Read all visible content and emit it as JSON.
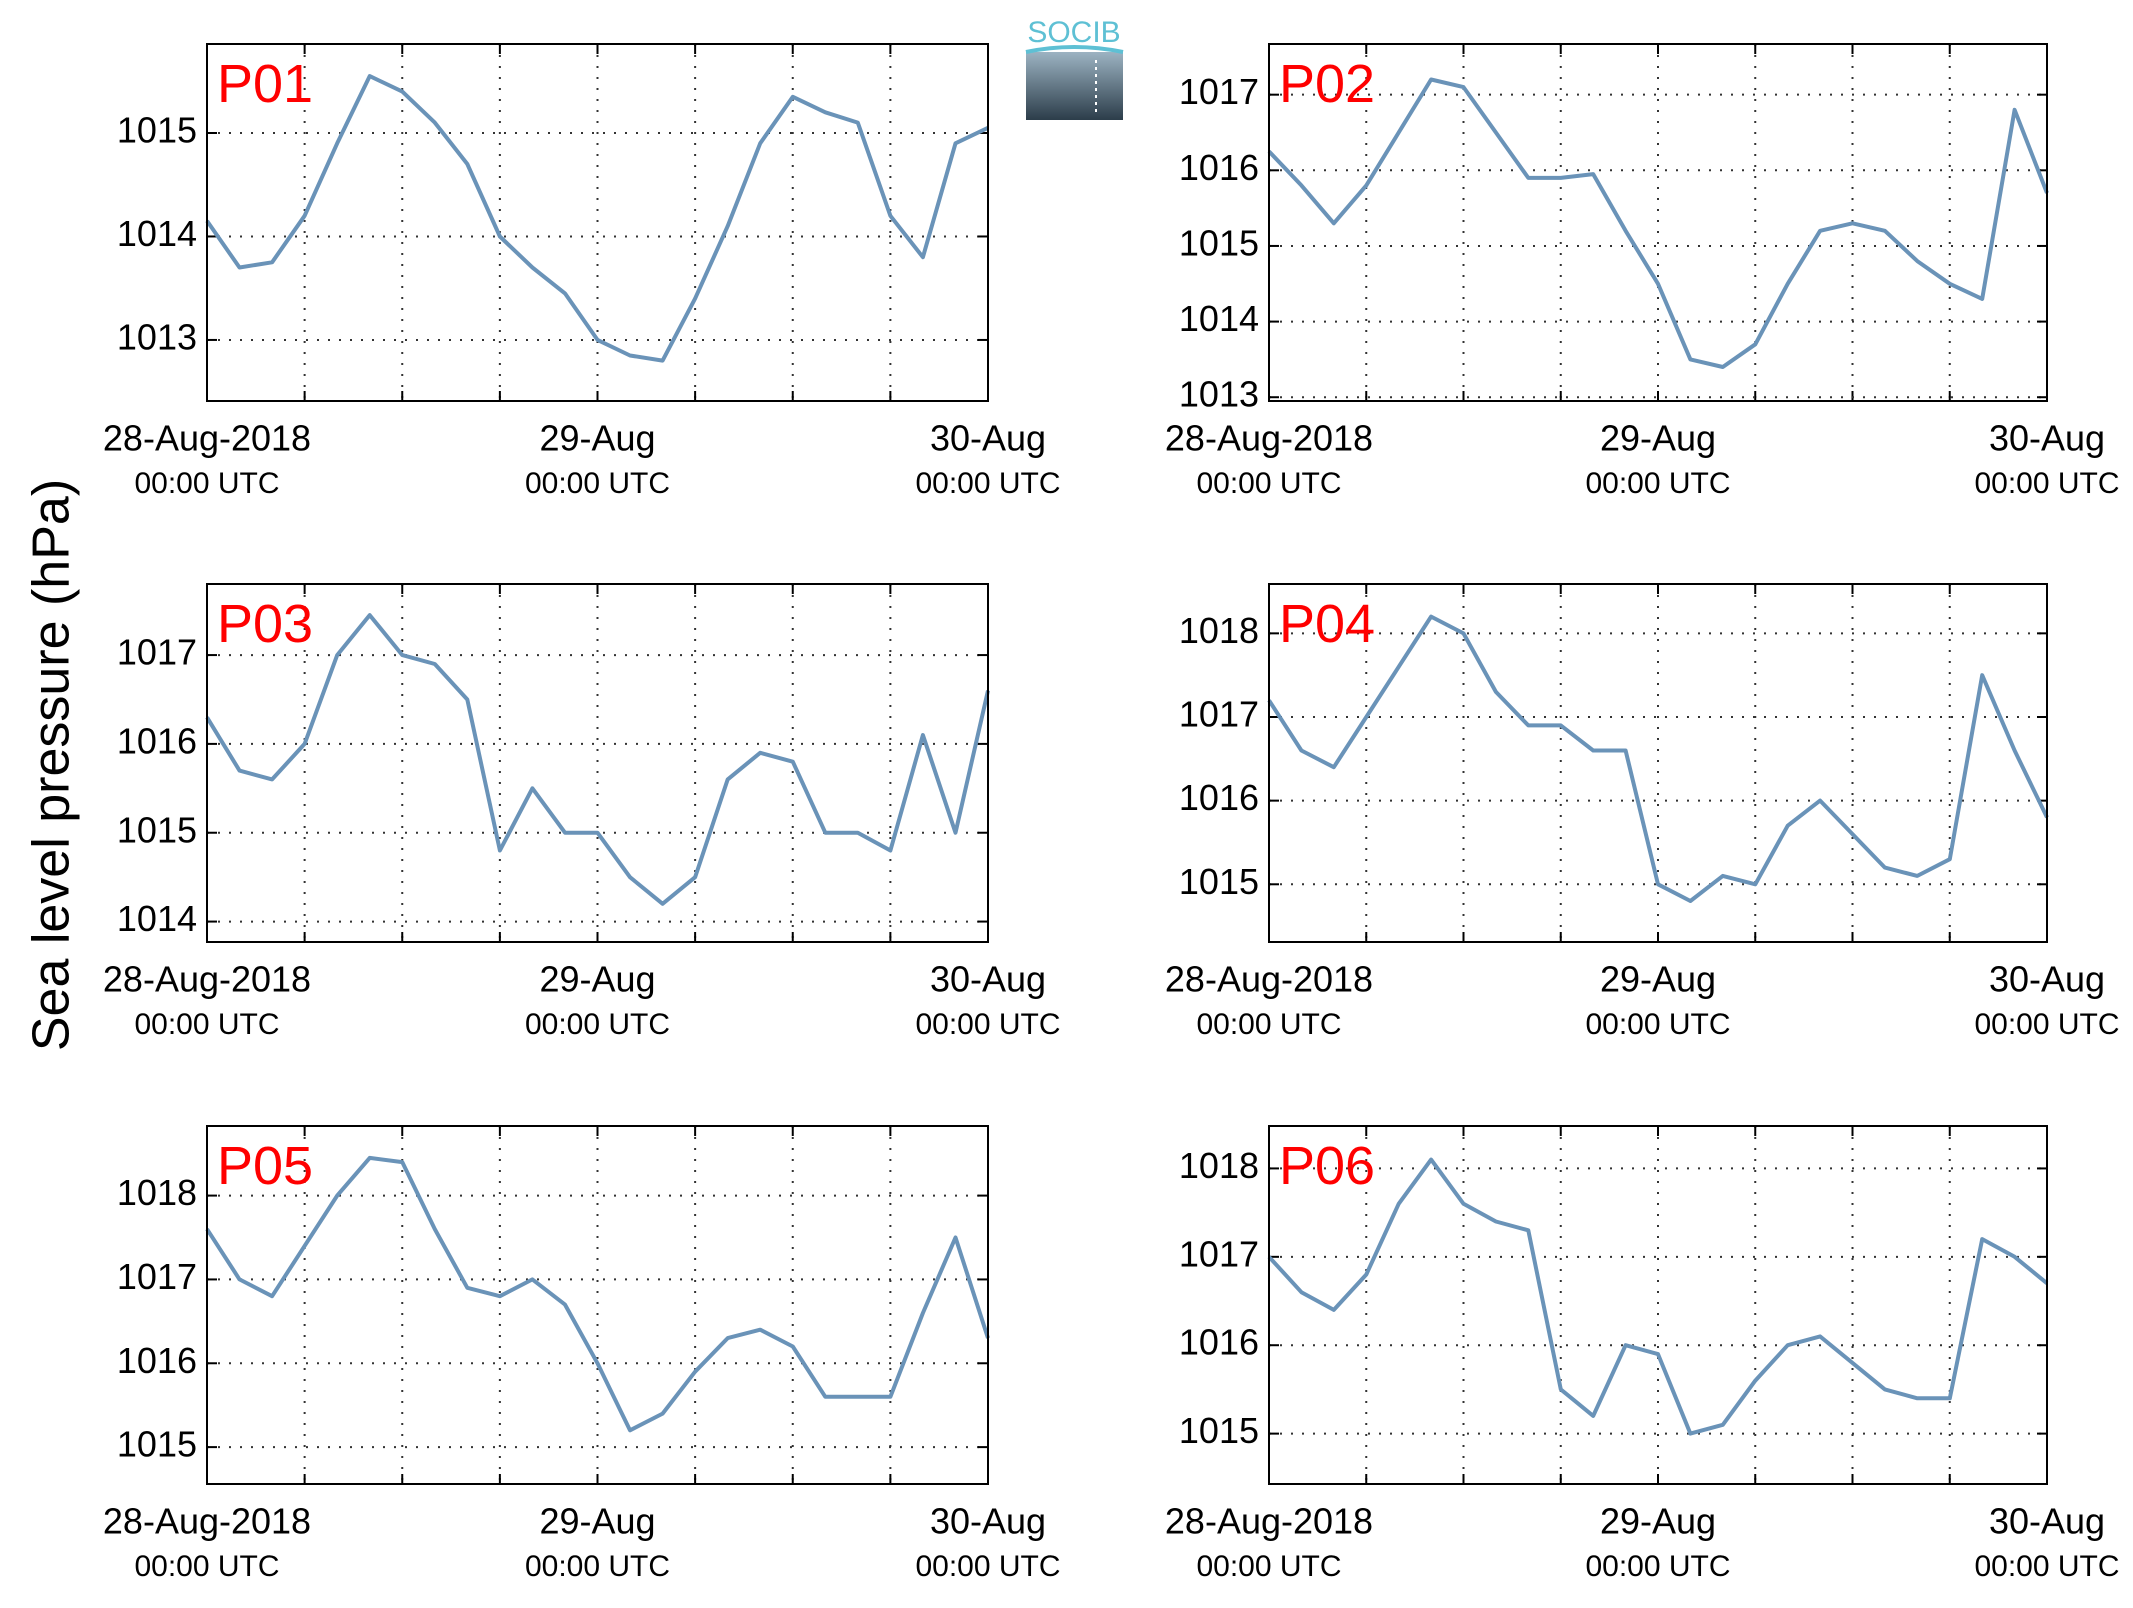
{
  "logo": "SOCIB",
  "y_label": "Sea level pressure (hPa)",
  "chart_data": [
    {
      "type": "line",
      "title": "P01",
      "color": "#6a93b8",
      "grid": true,
      "x": [
        0,
        2,
        4,
        6,
        8,
        10,
        12,
        14,
        16,
        18,
        20,
        22,
        24,
        26,
        28,
        30,
        32,
        34,
        36,
        38,
        40,
        42,
        44,
        46,
        48
      ],
      "values": [
        1014.15,
        1013.7,
        1013.75,
        1014.2,
        1014.9,
        1015.55,
        1015.4,
        1015.1,
        1014.7,
        1014.0,
        1013.7,
        1013.45,
        1013.0,
        1012.85,
        1012.8,
        1013.4,
        1014.1,
        1014.9,
        1015.35,
        1015.2,
        1015.1,
        1014.2,
        1013.8,
        1014.9,
        1015.05
      ],
      "xlim": [
        0,
        48
      ],
      "ylim": [
        1012.41,
        1015.86
      ],
      "yticks": [
        1013,
        1014,
        1015
      ],
      "xticks": [
        {
          "value": 0,
          "label": [
            "28-Aug-2018",
            "00:00 UTC"
          ]
        },
        {
          "value": 6,
          "label": null
        },
        {
          "value": 12,
          "label": null
        },
        {
          "value": 18,
          "label": null
        },
        {
          "value": 24,
          "label": [
            "29-Aug",
            "00:00 UTC"
          ]
        },
        {
          "value": 30,
          "label": null
        },
        {
          "value": 36,
          "label": null
        },
        {
          "value": 42,
          "label": null
        },
        {
          "value": 48,
          "label": [
            "30-Aug",
            "00:00 UTC"
          ]
        }
      ]
    },
    {
      "type": "line",
      "title": "P02",
      "color": "#6a93b8",
      "grid": true,
      "x": [
        0,
        2,
        4,
        6,
        8,
        10,
        12,
        14,
        16,
        18,
        20,
        22,
        24,
        26,
        28,
        30,
        32,
        34,
        36,
        38,
        40,
        42,
        44,
        46,
        48
      ],
      "values": [
        1016.25,
        1015.8,
        1015.3,
        1015.8,
        1016.5,
        1017.2,
        1017.1,
        1016.5,
        1015.9,
        1015.9,
        1015.95,
        1015.2,
        1014.5,
        1013.5,
        1013.4,
        1013.7,
        1014.5,
        1015.2,
        1015.3,
        1015.2,
        1014.8,
        1014.5,
        1014.3,
        1016.8,
        1015.7
      ],
      "xlim": [
        0,
        48
      ],
      "ylim": [
        1012.95,
        1017.67
      ],
      "yticks": [
        1013,
        1014,
        1015,
        1016,
        1017
      ],
      "xticks": [
        {
          "value": 0,
          "label": [
            "28-Aug-2018",
            "00:00 UTC"
          ]
        },
        {
          "value": 6,
          "label": null
        },
        {
          "value": 12,
          "label": null
        },
        {
          "value": 18,
          "label": null
        },
        {
          "value": 24,
          "label": [
            "29-Aug",
            "00:00 UTC"
          ]
        },
        {
          "value": 30,
          "label": null
        },
        {
          "value": 36,
          "label": null
        },
        {
          "value": 42,
          "label": null
        },
        {
          "value": 48,
          "label": [
            "30-Aug",
            "00:00 UTC"
          ]
        }
      ]
    },
    {
      "type": "line",
      "title": "P03",
      "color": "#6a93b8",
      "grid": true,
      "x": [
        0,
        2,
        4,
        6,
        8,
        10,
        12,
        14,
        16,
        18,
        20,
        22,
        24,
        26,
        28,
        30,
        32,
        34,
        36,
        38,
        40,
        42,
        44,
        46,
        48
      ],
      "values": [
        1016.3,
        1015.7,
        1015.6,
        1016.0,
        1017.0,
        1017.45,
        1017.0,
        1016.9,
        1016.5,
        1014.8,
        1015.5,
        1015.0,
        1015.0,
        1014.5,
        1014.2,
        1014.5,
        1015.6,
        1015.9,
        1015.8,
        1015.0,
        1015.0,
        1014.8,
        1016.1,
        1015.0,
        1016.6
      ],
      "xlim": [
        0,
        48
      ],
      "ylim": [
        1013.77,
        1017.8
      ],
      "yticks": [
        1014,
        1015,
        1016,
        1017
      ],
      "xticks": [
        {
          "value": 0,
          "label": [
            "28-Aug-2018",
            "00:00 UTC"
          ]
        },
        {
          "value": 6,
          "label": null
        },
        {
          "value": 12,
          "label": null
        },
        {
          "value": 18,
          "label": null
        },
        {
          "value": 24,
          "label": [
            "29-Aug",
            "00:00 UTC"
          ]
        },
        {
          "value": 30,
          "label": null
        },
        {
          "value": 36,
          "label": null
        },
        {
          "value": 42,
          "label": null
        },
        {
          "value": 48,
          "label": [
            "30-Aug",
            "00:00 UTC"
          ]
        }
      ]
    },
    {
      "type": "line",
      "title": "P04",
      "color": "#6a93b8",
      "grid": true,
      "x": [
        0,
        2,
        4,
        6,
        8,
        10,
        12,
        14,
        16,
        18,
        20,
        22,
        24,
        26,
        28,
        30,
        32,
        34,
        36,
        38,
        40,
        42,
        44,
        46,
        48
      ],
      "values": [
        1017.2,
        1016.6,
        1016.4,
        1017.0,
        1017.6,
        1018.2,
        1018.0,
        1017.3,
        1016.9,
        1016.9,
        1016.6,
        1016.6,
        1015.0,
        1014.8,
        1015.1,
        1015.0,
        1015.7,
        1016.0,
        1015.6,
        1015.2,
        1015.1,
        1015.3,
        1017.5,
        1016.6,
        1015.8
      ],
      "xlim": [
        0,
        48
      ],
      "ylim": [
        1014.31,
        1018.59
      ],
      "yticks": [
        1015,
        1016,
        1017,
        1018
      ],
      "xticks": [
        {
          "value": 0,
          "label": [
            "28-Aug-2018",
            "00:00 UTC"
          ]
        },
        {
          "value": 6,
          "label": null
        },
        {
          "value": 12,
          "label": null
        },
        {
          "value": 18,
          "label": null
        },
        {
          "value": 24,
          "label": [
            "29-Aug",
            "00:00 UTC"
          ]
        },
        {
          "value": 30,
          "label": null
        },
        {
          "value": 36,
          "label": null
        },
        {
          "value": 42,
          "label": null
        },
        {
          "value": 48,
          "label": [
            "30-Aug",
            "00:00 UTC"
          ]
        }
      ]
    },
    {
      "type": "line",
      "title": "P05",
      "color": "#6a93b8",
      "grid": true,
      "x": [
        0,
        2,
        4,
        6,
        8,
        10,
        12,
        14,
        16,
        18,
        20,
        22,
        24,
        26,
        28,
        30,
        32,
        34,
        36,
        38,
        40,
        42,
        44,
        46,
        48
      ],
      "values": [
        1017.6,
        1017.0,
        1016.8,
        1017.4,
        1018.0,
        1018.45,
        1018.4,
        1017.6,
        1016.9,
        1016.8,
        1017.0,
        1016.7,
        1016.0,
        1015.2,
        1015.4,
        1015.9,
        1016.3,
        1016.4,
        1016.2,
        1015.6,
        1015.6,
        1015.6,
        1016.6,
        1017.5,
        1016.3
      ],
      "xlim": [
        0,
        48
      ],
      "ylim": [
        1014.56,
        1018.83
      ],
      "yticks": [
        1015,
        1016,
        1017,
        1018
      ],
      "xticks": [
        {
          "value": 0,
          "label": [
            "28-Aug-2018",
            "00:00 UTC"
          ]
        },
        {
          "value": 6,
          "label": null
        },
        {
          "value": 12,
          "label": null
        },
        {
          "value": 18,
          "label": null
        },
        {
          "value": 24,
          "label": [
            "29-Aug",
            "00:00 UTC"
          ]
        },
        {
          "value": 30,
          "label": null
        },
        {
          "value": 36,
          "label": null
        },
        {
          "value": 42,
          "label": null
        },
        {
          "value": 48,
          "label": [
            "30-Aug",
            "00:00 UTC"
          ]
        }
      ]
    },
    {
      "type": "line",
      "title": "P06",
      "color": "#6a93b8",
      "grid": true,
      "x": [
        0,
        2,
        4,
        6,
        8,
        10,
        12,
        14,
        16,
        18,
        20,
        22,
        24,
        26,
        28,
        30,
        32,
        34,
        36,
        38,
        40,
        42,
        44,
        46,
        48
      ],
      "values": [
        1017.0,
        1016.6,
        1016.4,
        1016.8,
        1017.6,
        1018.1,
        1017.6,
        1017.4,
        1017.3,
        1015.5,
        1015.2,
        1016.0,
        1015.9,
        1015.0,
        1015.1,
        1015.6,
        1016.0,
        1016.1,
        1015.8,
        1015.5,
        1015.4,
        1015.4,
        1017.2,
        1017.0,
        1016.7
      ],
      "xlim": [
        0,
        48
      ],
      "ylim": [
        1014.43,
        1018.48
      ],
      "yticks": [
        1015,
        1016,
        1017,
        1018
      ],
      "xticks": [
        {
          "value": 0,
          "label": [
            "28-Aug-2018",
            "00:00 UTC"
          ]
        },
        {
          "value": 6,
          "label": null
        },
        {
          "value": 12,
          "label": null
        },
        {
          "value": 18,
          "label": null
        },
        {
          "value": 24,
          "label": [
            "29-Aug",
            "00:00 UTC"
          ]
        },
        {
          "value": 30,
          "label": null
        },
        {
          "value": 36,
          "label": null
        },
        {
          "value": 42,
          "label": null
        },
        {
          "value": 48,
          "label": [
            "30-Aug",
            "00:00 UTC"
          ]
        }
      ]
    }
  ]
}
